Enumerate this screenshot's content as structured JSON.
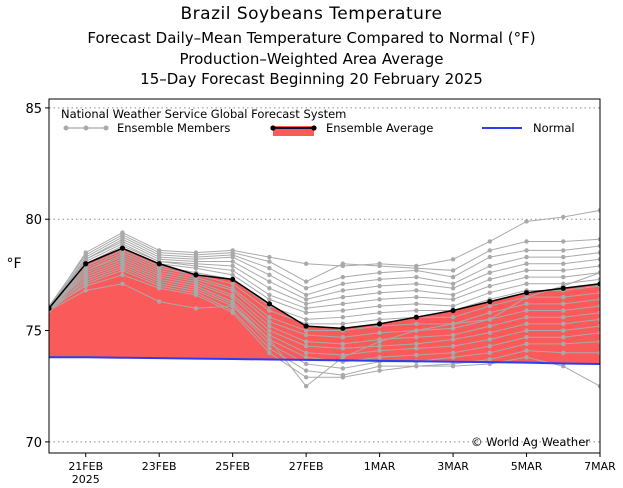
{
  "titles": {
    "line1": "Brazil Soybeans Temperature",
    "line2": "Forecast Daily–Mean Temperature Compared to Normal (°F)",
    "line3": "Production–Weighted Area Average",
    "line4": "15–Day Forecast Beginning 20 February 2025"
  },
  "colors": {
    "members": "#a9a9a9",
    "average": "#000000",
    "fill": "#fa5a5a",
    "normal": "#2b3df0",
    "grid": "#8c8c8c"
  },
  "chart_data": {
    "type": "line",
    "title": "Brazil Soybeans Temperature",
    "ylabel": "°F",
    "ylim": [
      69.5,
      85.4
    ],
    "yticks": [
      70,
      75,
      80,
      85
    ],
    "grid": "horizontal dotted",
    "legend_placement": "top",
    "panel_title": "National Weather Service Global Forecast System",
    "legend": [
      "Ensemble Members",
      "Ensemble Average",
      "Normal"
    ],
    "credit": "© World Ag Weather",
    "x": [
      "20FEB",
      "21FEB",
      "22FEB",
      "23FEB",
      "24FEB",
      "25FEB",
      "26FEB",
      "27FEB",
      "28FEB",
      "1MAR",
      "2MAR",
      "3MAR",
      "4MAR",
      "5MAR",
      "6MAR",
      "7MAR"
    ],
    "x_tick_labels": [
      "21FEB\n2025",
      "23FEB",
      "25FEB",
      "27FEB",
      "1MAR",
      "3MAR",
      "5MAR",
      "7MAR"
    ],
    "x_tick_positions": [
      1,
      3,
      5,
      7,
      9,
      11,
      13,
      15
    ],
    "series": [
      {
        "name": "Ensemble Average",
        "values": [
          76.0,
          78.0,
          78.7,
          78.0,
          77.5,
          77.3,
          76.2,
          75.2,
          75.1,
          75.3,
          75.6,
          75.9,
          76.3,
          76.7,
          76.9,
          77.1
        ]
      },
      {
        "name": "Normal",
        "values": [
          73.8,
          73.8,
          73.78,
          73.76,
          73.74,
          73.72,
          73.7,
          73.68,
          73.66,
          73.64,
          73.62,
          73.6,
          73.58,
          73.56,
          73.52,
          73.5
        ]
      }
    ],
    "members": [
      [
        76.0,
        78.5,
        79.4,
        78.6,
        78.5,
        78.6,
        78.3,
        78.0,
        77.9,
        78.0,
        77.9,
        78.2,
        79.0,
        79.9,
        80.1,
        80.4
      ],
      [
        76.1,
        78.4,
        79.3,
        78.5,
        78.4,
        78.5,
        78.1,
        77.2,
        78.0,
        77.9,
        77.8,
        77.7,
        78.6,
        79.0,
        79.0,
        79.1
      ],
      [
        76.0,
        78.3,
        79.2,
        78.4,
        78.3,
        78.4,
        77.8,
        76.9,
        77.4,
        77.6,
        77.7,
        77.4,
        78.3,
        78.6,
        78.6,
        78.8
      ],
      [
        75.9,
        78.2,
        79.1,
        78.3,
        78.2,
        78.3,
        77.5,
        76.6,
        77.1,
        77.3,
        77.4,
        77.1,
        77.9,
        78.3,
        78.3,
        78.5
      ],
      [
        76.0,
        78.2,
        79.0,
        78.2,
        78.1,
        78.1,
        77.2,
        76.4,
        76.8,
        77.0,
        77.1,
        76.9,
        77.6,
        78.0,
        78.0,
        78.2
      ],
      [
        76.1,
        78.1,
        78.9,
        78.1,
        78.0,
        77.9,
        76.9,
        76.2,
        76.5,
        76.7,
        76.8,
        76.6,
        77.3,
        77.7,
        77.7,
        77.9
      ],
      [
        76.0,
        78.0,
        78.8,
        78.1,
        77.9,
        77.7,
        76.6,
        76.0,
        76.2,
        76.4,
        76.5,
        76.4,
        77.0,
        77.4,
        77.4,
        77.6
      ],
      [
        75.9,
        78.0,
        78.7,
        78.0,
        77.8,
        77.5,
        76.4,
        75.8,
        75.9,
        76.1,
        76.2,
        76.1,
        76.7,
        77.1,
        77.1,
        77.3
      ],
      [
        76.0,
        77.9,
        78.6,
        77.9,
        77.6,
        77.3,
        76.1,
        75.5,
        75.6,
        75.8,
        75.9,
        75.9,
        76.4,
        76.8,
        76.8,
        77.0
      ],
      [
        76.0,
        77.8,
        78.5,
        77.8,
        77.5,
        77.1,
        75.9,
        75.3,
        75.3,
        75.5,
        75.6,
        75.6,
        76.1,
        76.5,
        76.5,
        76.7
      ],
      [
        75.9,
        77.7,
        78.4,
        77.7,
        77.4,
        76.9,
        75.6,
        75.0,
        75.0,
        75.2,
        75.3,
        75.3,
        75.8,
        76.2,
        76.2,
        76.4
      ],
      [
        76.0,
        77.7,
        78.3,
        77.6,
        77.3,
        76.8,
        75.4,
        74.8,
        74.7,
        74.9,
        75.0,
        75.1,
        75.5,
        75.9,
        75.9,
        76.1
      ],
      [
        75.9,
        77.6,
        78.2,
        77.5,
        77.2,
        76.6,
        75.2,
        74.5,
        74.4,
        74.6,
        74.7,
        74.8,
        75.2,
        75.6,
        75.6,
        75.8
      ],
      [
        76.0,
        77.5,
        78.1,
        77.4,
        77.1,
        76.5,
        75.0,
        74.3,
        74.2,
        74.3,
        74.4,
        74.6,
        74.9,
        75.3,
        75.3,
        75.5
      ],
      [
        76.0,
        77.4,
        78.0,
        77.3,
        77.0,
        76.3,
        74.8,
        74.0,
        73.9,
        74.1,
        74.2,
        74.3,
        74.6,
        75.0,
        75.0,
        75.2
      ],
      [
        75.9,
        77.3,
        77.9,
        77.2,
        76.9,
        76.2,
        74.6,
        73.8,
        73.6,
        73.8,
        73.9,
        74.0,
        74.3,
        74.7,
        74.7,
        74.9
      ],
      [
        76.0,
        77.2,
        77.8,
        77.1,
        76.8,
        76.1,
        74.4,
        73.5,
        73.3,
        73.6,
        73.6,
        73.8,
        74.0,
        74.4,
        74.4,
        74.5
      ],
      [
        75.9,
        77.1,
        77.7,
        77.0,
        76.7,
        75.9,
        74.2,
        73.2,
        73.0,
        73.4,
        73.4,
        73.5,
        73.7,
        74.1,
        74.0,
        74.0
      ],
      [
        76.0,
        77.0,
        77.5,
        76.9,
        76.6,
        75.8,
        74.0,
        72.9,
        72.9,
        73.2,
        73.4,
        73.4,
        73.5,
        73.8,
        73.4,
        72.5
      ],
      [
        75.9,
        76.8,
        77.1,
        76.3,
        76.0,
        76.1,
        74.6,
        72.5,
        73.8,
        74.5,
        75.0,
        75.3,
        75.5,
        76.5,
        77.0,
        77.6
      ]
    ]
  }
}
